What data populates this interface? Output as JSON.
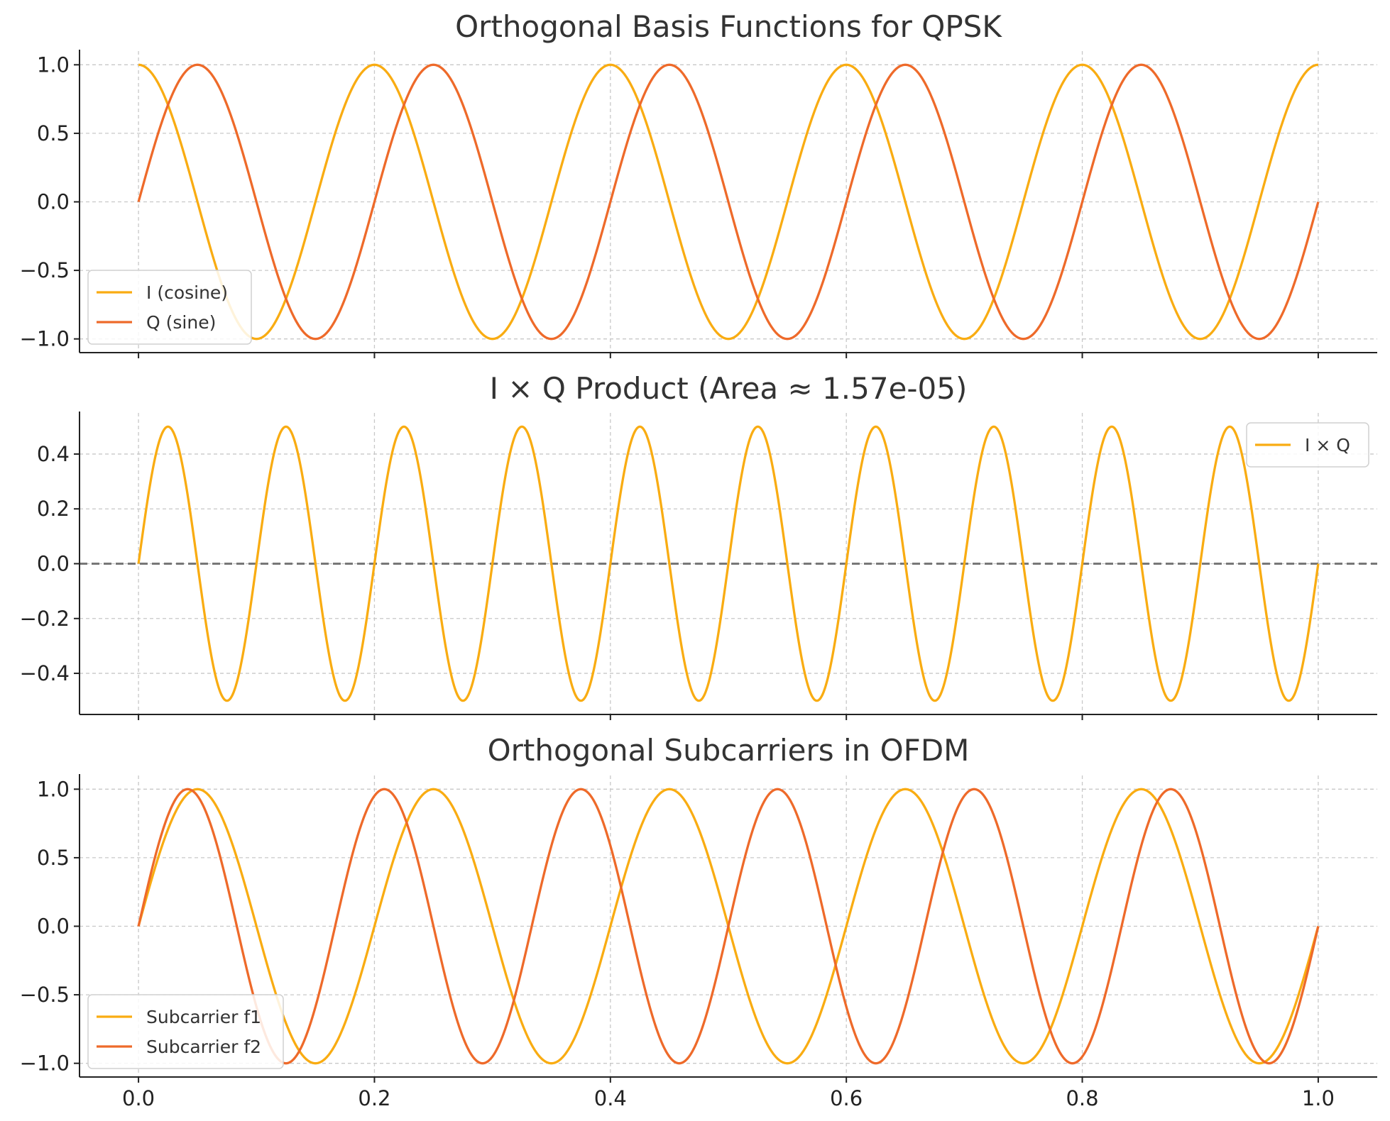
{
  "chart_data": [
    {
      "type": "line",
      "title": "Orthogonal Basis Functions for QPSK",
      "xlabel": "",
      "ylabel": "",
      "xlim": [
        -0.05,
        1.05
      ],
      "ylim": [
        -1.1,
        1.1
      ],
      "xticks": [
        0.0,
        0.2,
        0.4,
        0.6,
        0.8,
        1.0
      ],
      "yticks": [
        1.0,
        0.5,
        0.0,
        -0.5,
        -1.0
      ],
      "ytick_labels": [
        "1.0",
        "0.5",
        "0.0",
        "−0.5",
        "−1.0"
      ],
      "show_xtick_labels": false,
      "grid": true,
      "legend_loc": "lower-left",
      "series": [
        {
          "name": "I (cosine)",
          "color": "#F9AC12",
          "function": "cos",
          "frequency": 5,
          "scale": 1.0
        },
        {
          "name": "Q (sine)",
          "color": "#EE6A2A",
          "function": "sin",
          "frequency": 5,
          "scale": 1.0
        }
      ]
    },
    {
      "type": "line",
      "title": "I × Q Product (Area ≈ 1.57e-05)",
      "xlabel": "",
      "ylabel": "",
      "xlim": [
        -0.05,
        1.05
      ],
      "ylim": [
        -0.55,
        0.55
      ],
      "xticks": [
        0.0,
        0.2,
        0.4,
        0.6,
        0.8,
        1.0
      ],
      "yticks": [
        0.4,
        0.2,
        0.0,
        -0.2,
        -0.4
      ],
      "ytick_labels": [
        "0.4",
        "0.2",
        "0.0",
        "−0.2",
        "−0.4"
      ],
      "show_xtick_labels": false,
      "grid": true,
      "legend_loc": "upper-right",
      "reference_line": {
        "y": 0,
        "style": "dashed",
        "color": "#777777"
      },
      "series": [
        {
          "name": "I × Q",
          "color": "#F9AC12",
          "function": "sin",
          "frequency": 10,
          "scale": 0.5
        }
      ]
    },
    {
      "type": "line",
      "title": "Orthogonal Subcarriers in OFDM",
      "xlabel": "",
      "ylabel": "",
      "xlim": [
        -0.05,
        1.05
      ],
      "ylim": [
        -1.1,
        1.1
      ],
      "xticks": [
        0.0,
        0.2,
        0.4,
        0.6,
        0.8,
        1.0
      ],
      "xtick_labels": [
        "0.0",
        "0.2",
        "0.4",
        "0.6",
        "0.8",
        "1.0"
      ],
      "yticks": [
        1.0,
        0.5,
        0.0,
        -0.5,
        -1.0
      ],
      "ytick_labels": [
        "1.0",
        "0.5",
        "0.0",
        "−0.5",
        "−1.0"
      ],
      "show_xtick_labels": true,
      "grid": true,
      "legend_loc": "lower-left",
      "series": [
        {
          "name": "Subcarrier f1",
          "color": "#F9AC12",
          "function": "sin",
          "frequency": 5,
          "scale": 1.0
        },
        {
          "name": "Subcarrier f2",
          "color": "#EE6A2A",
          "function": "sin",
          "frequency": 6,
          "scale": 1.0
        }
      ]
    }
  ]
}
